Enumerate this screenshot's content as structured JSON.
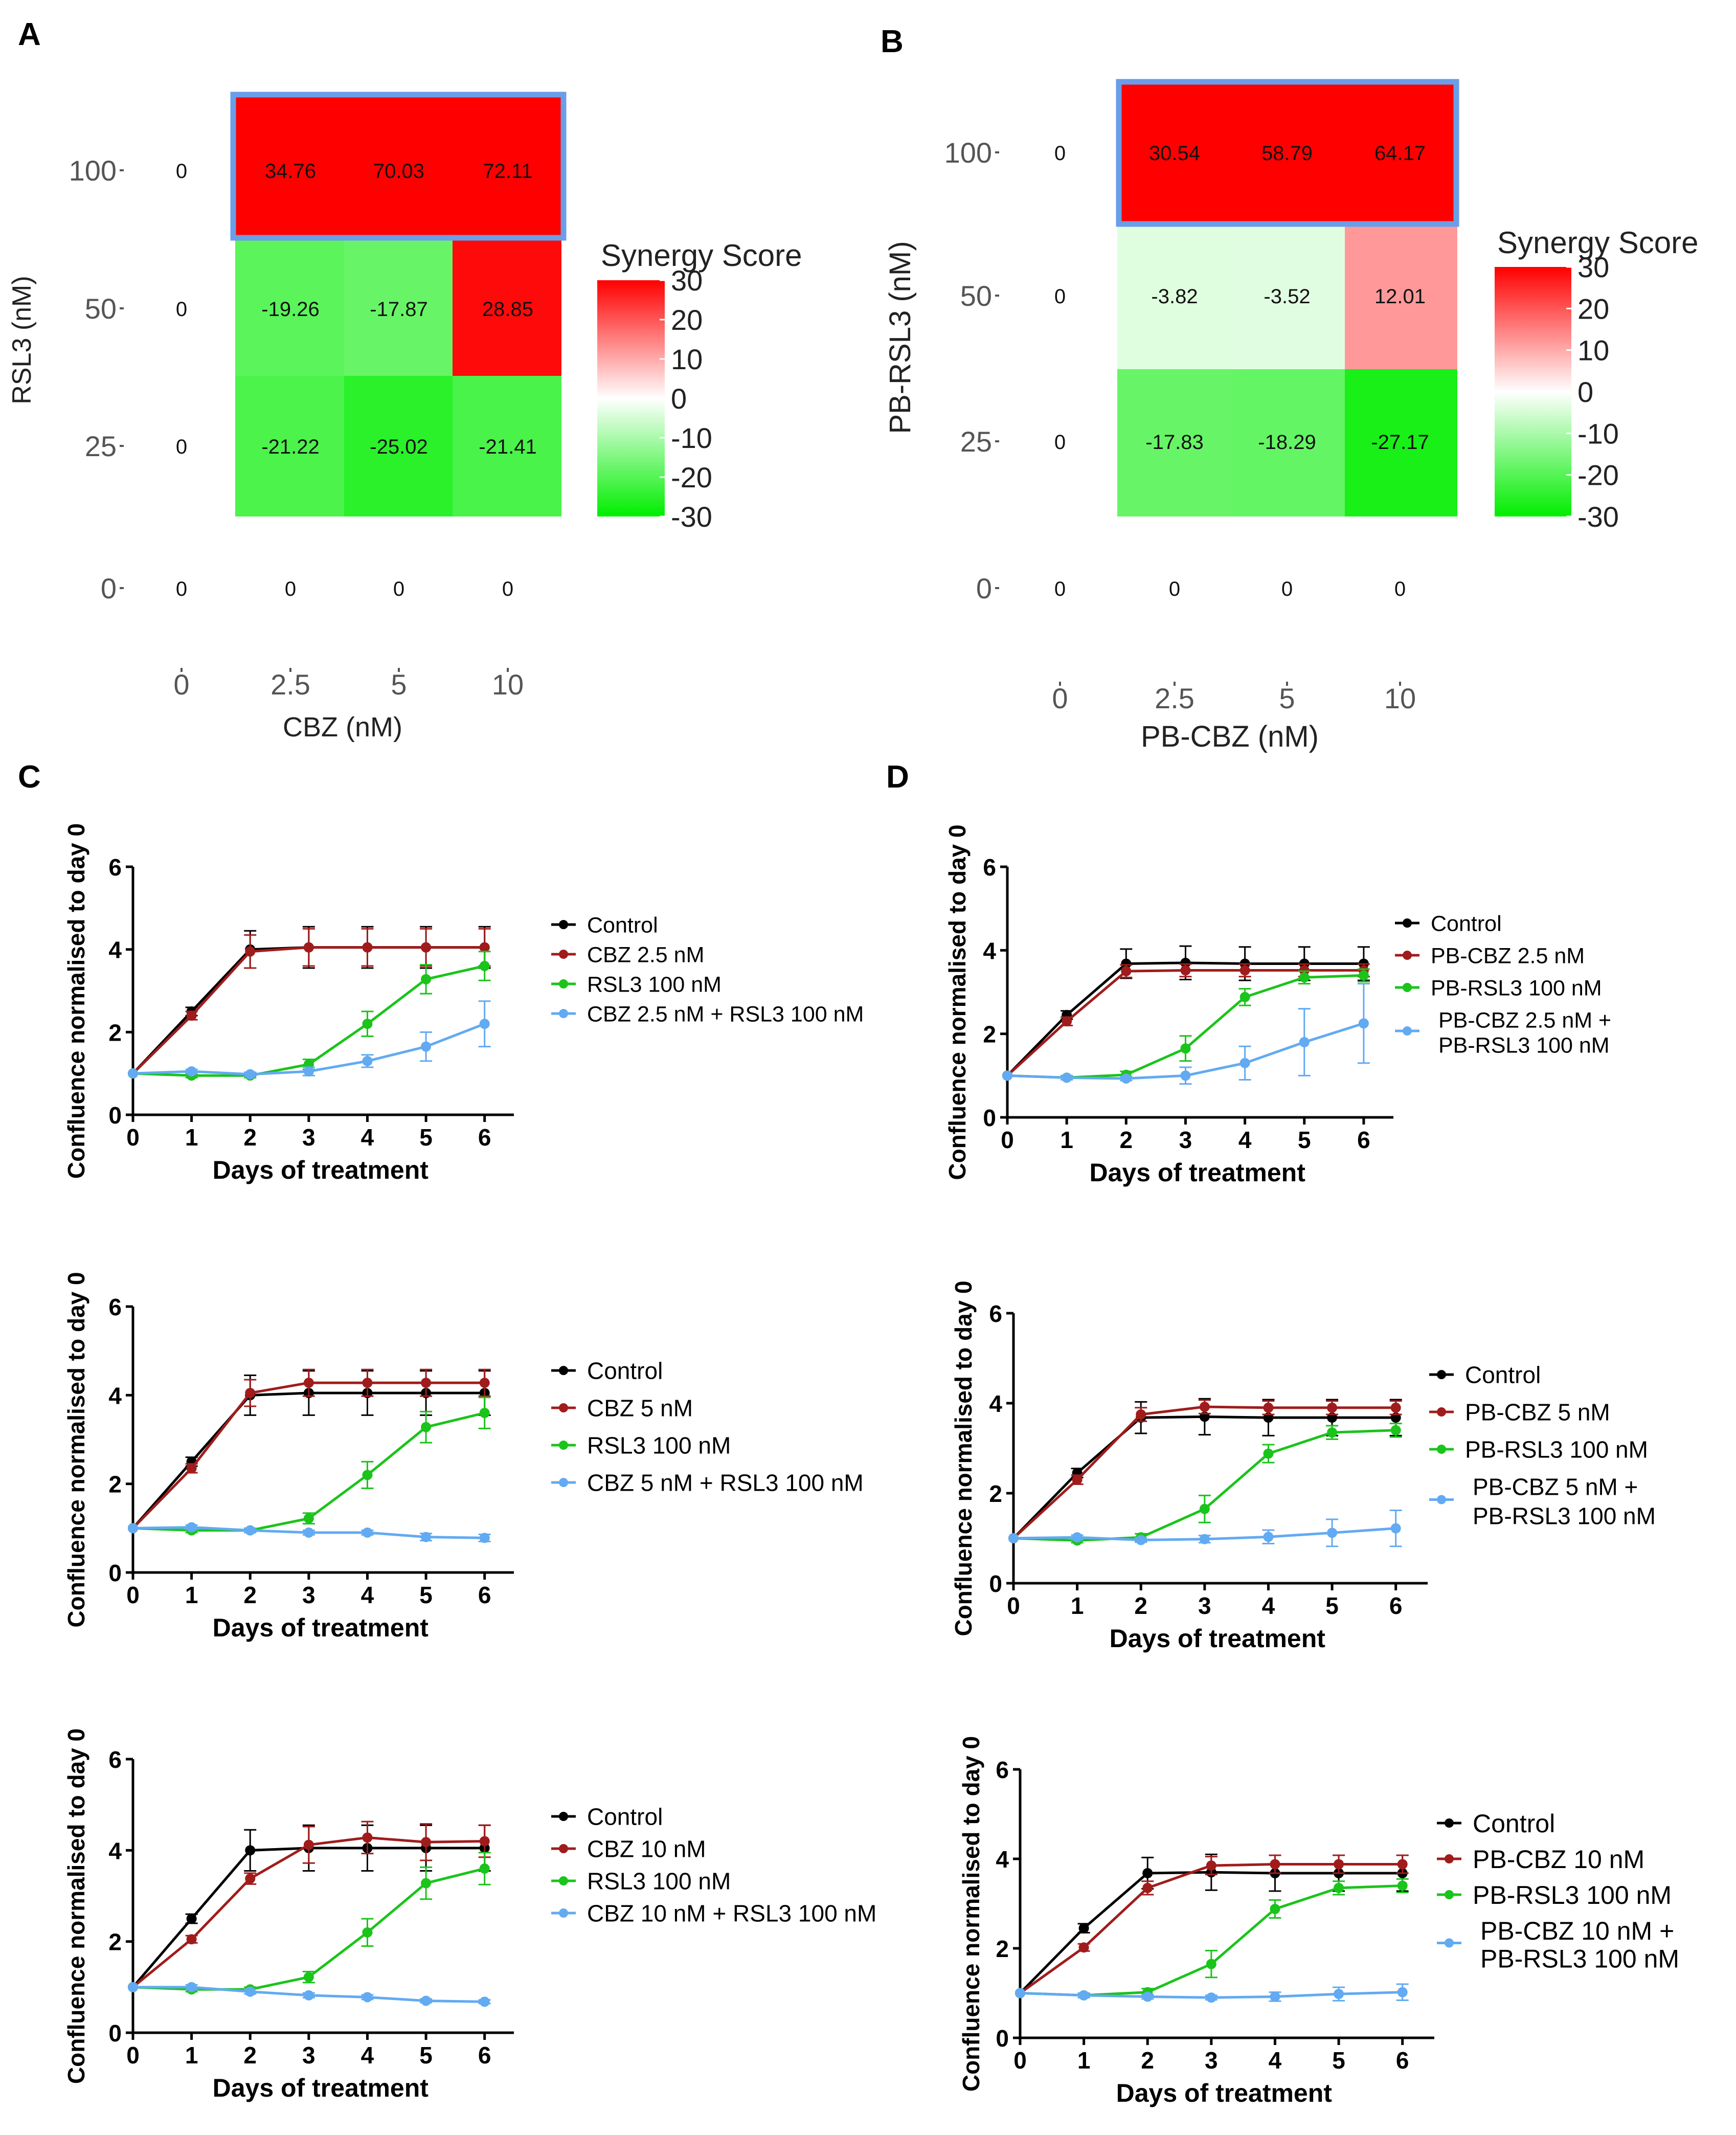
{
  "panel_labels": [
    "A",
    "B",
    "C",
    "D"
  ],
  "colors": {
    "control": "#000000",
    "drugA": "#a01c1c",
    "drugB": "#1ac41a",
    "combo": "#62aaf2",
    "highlight": "#6a9ee8",
    "heat_pos": "#ff0000",
    "heat_neg": "#00ee00",
    "heat_mid": "#ffffff"
  },
  "chart_data": [
    {
      "id": "A",
      "type": "heatmap",
      "title": "",
      "xlabel": "CBZ (nM)",
      "ylabel": "RSL3 (nM)",
      "x_ticks": [
        "0",
        "2.5",
        "5",
        "10"
      ],
      "y_ticks": [
        "0",
        "25",
        "50",
        "100"
      ],
      "rows": [
        {
          "y": "100",
          "values": [
            "0",
            "34.76",
            "70.03",
            "72.11"
          ]
        },
        {
          "y": "50",
          "values": [
            "0",
            "-19.26",
            "-17.87",
            "28.85"
          ]
        },
        {
          "y": "25",
          "values": [
            "0",
            "-21.22",
            "-25.02",
            "-21.41"
          ]
        },
        {
          "y": "0",
          "values": [
            "0",
            "0",
            "0",
            "0"
          ]
        }
      ],
      "highlighted_row": "100",
      "colorbar": {
        "title": "Synergy Score",
        "ticks": [
          "30",
          "20",
          "10",
          "0",
          "-10",
          "-20",
          "-30"
        ],
        "range": [
          -30,
          30
        ]
      }
    },
    {
      "id": "B",
      "type": "heatmap",
      "title": "",
      "xlabel": "PB-CBZ (nM)",
      "ylabel": "PB-RSL3 (nM)",
      "x_ticks": [
        "0",
        "2.5",
        "5",
        "10"
      ],
      "y_ticks": [
        "0",
        "25",
        "50",
        "100"
      ],
      "rows": [
        {
          "y": "100",
          "values": [
            "0",
            "30.54",
            "58.79",
            "64.17"
          ]
        },
        {
          "y": "50",
          "values": [
            "0",
            "-3.82",
            "-3.52",
            "12.01"
          ]
        },
        {
          "y": "25",
          "values": [
            "0",
            "-17.83",
            "-18.29",
            "-27.17"
          ]
        },
        {
          "y": "0",
          "values": [
            "0",
            "0",
            "0",
            "0"
          ]
        }
      ],
      "highlighted_row": "100",
      "colorbar": {
        "title": "Synergy Score",
        "ticks": [
          "30",
          "20",
          "10",
          "0",
          "-10",
          "-20",
          "-30"
        ],
        "range": [
          -30,
          30
        ]
      }
    },
    {
      "id": "C1",
      "type": "line",
      "xlabel": "Days of treatment",
      "ylabel": "Confluence normalised to day 0",
      "x": [
        0,
        1,
        2,
        3,
        4,
        5,
        6
      ],
      "xlim": [
        0,
        6.5
      ],
      "ylim": [
        0,
        6
      ],
      "x_ticks": [
        "0",
        "1",
        "2",
        "3",
        "4",
        "5",
        "6"
      ],
      "y_ticks": [
        "0",
        "2",
        "4",
        "6"
      ],
      "series": [
        {
          "name": "Control",
          "values": [
            1,
            2.5,
            4.0,
            4.05,
            4.05,
            4.05,
            4.05
          ],
          "err": [
            0,
            0.1,
            0.45,
            0.5,
            0.5,
            0.5,
            0.5
          ]
        },
        {
          "name": "CBZ 2.5 nM",
          "values": [
            1,
            2.4,
            3.95,
            4.05,
            4.05,
            4.05,
            4.05
          ],
          "err": [
            0,
            0.1,
            0.4,
            0.45,
            0.45,
            0.45,
            0.45
          ]
        },
        {
          "name": "RSL3 100 nM",
          "values": [
            1,
            0.95,
            0.95,
            1.22,
            2.2,
            3.28,
            3.6
          ],
          "err": [
            0,
            0.05,
            0.05,
            0.12,
            0.3,
            0.35,
            0.35
          ]
        },
        {
          "name": "CBZ 2.5 nM + RSL3 100 nM",
          "values": [
            1,
            1.05,
            0.98,
            1.05,
            1.3,
            1.65,
            2.2
          ],
          "err": [
            0,
            0.05,
            0.05,
            0.1,
            0.15,
            0.35,
            0.55
          ]
        }
      ]
    },
    {
      "id": "C2",
      "type": "line",
      "xlabel": "Days of treatment",
      "ylabel": "Confluence normalised to day 0",
      "x": [
        0,
        1,
        2,
        3,
        4,
        5,
        6
      ],
      "xlim": [
        0,
        6.5
      ],
      "ylim": [
        0,
        6
      ],
      "x_ticks": [
        "0",
        "1",
        "2",
        "3",
        "4",
        "5",
        "6"
      ],
      "y_ticks": [
        "0",
        "2",
        "4",
        "6"
      ],
      "series": [
        {
          "name": "Control",
          "values": [
            1,
            2.5,
            4.0,
            4.05,
            4.05,
            4.05,
            4.05
          ],
          "err": [
            0,
            0.1,
            0.45,
            0.5,
            0.5,
            0.5,
            0.5
          ]
        },
        {
          "name": "CBZ 5 nM",
          "values": [
            1,
            2.35,
            4.05,
            4.28,
            4.28,
            4.28,
            4.28
          ],
          "err": [
            0,
            0.1,
            0.3,
            0.3,
            0.3,
            0.3,
            0.3
          ]
        },
        {
          "name": "RSL3 100 nM",
          "values": [
            1,
            0.95,
            0.95,
            1.22,
            2.2,
            3.28,
            3.6
          ],
          "err": [
            0,
            0.05,
            0.05,
            0.12,
            0.3,
            0.35,
            0.35
          ]
        },
        {
          "name": "CBZ 5 nM + RSL3 100 nM",
          "values": [
            1,
            1.02,
            0.95,
            0.9,
            0.9,
            0.8,
            0.78
          ],
          "err": [
            0,
            0.05,
            0.05,
            0.05,
            0.05,
            0.08,
            0.08
          ]
        }
      ]
    },
    {
      "id": "C3",
      "type": "line",
      "xlabel": "Days of treatment",
      "ylabel": "Confluence normalised to day 0",
      "x": [
        0,
        1,
        2,
        3,
        4,
        5,
        6
      ],
      "xlim": [
        0,
        6.5
      ],
      "ylim": [
        0,
        6
      ],
      "x_ticks": [
        "0",
        "1",
        "2",
        "3",
        "4",
        "5",
        "6"
      ],
      "y_ticks": [
        "0",
        "2",
        "4",
        "6"
      ],
      "series": [
        {
          "name": "Control",
          "values": [
            1,
            2.5,
            4.0,
            4.05,
            4.05,
            4.05,
            4.05
          ],
          "err": [
            0,
            0.1,
            0.45,
            0.5,
            0.5,
            0.5,
            0.5
          ]
        },
        {
          "name": "CBZ 10 nM",
          "values": [
            1,
            2.05,
            3.38,
            4.12,
            4.28,
            4.18,
            4.2
          ],
          "err": [
            0,
            0.08,
            0.12,
            0.4,
            0.35,
            0.4,
            0.35
          ]
        },
        {
          "name": "RSL3 100 nM",
          "values": [
            1,
            0.95,
            0.95,
            1.22,
            2.2,
            3.28,
            3.6
          ],
          "err": [
            0,
            0.05,
            0.05,
            0.12,
            0.3,
            0.35,
            0.35
          ]
        },
        {
          "name": "CBZ 10 nM + RSL3 100 nM",
          "values": [
            1,
            1.0,
            0.9,
            0.82,
            0.78,
            0.7,
            0.68
          ],
          "err": [
            0,
            0.05,
            0.05,
            0.05,
            0.05,
            0.04,
            0.04
          ]
        }
      ]
    },
    {
      "id": "D1",
      "type": "line",
      "xlabel": "Days of treatment",
      "ylabel": "Confluence normalised to day 0",
      "x": [
        0,
        1,
        2,
        3,
        4,
        5,
        6
      ],
      "xlim": [
        0,
        6.5
      ],
      "ylim": [
        0,
        6
      ],
      "x_ticks": [
        "0",
        "1",
        "2",
        "3",
        "4",
        "5",
        "6"
      ],
      "y_ticks": [
        "0",
        "2",
        "4",
        "6"
      ],
      "series": [
        {
          "name": "Control",
          "values": [
            1,
            2.45,
            3.68,
            3.7,
            3.68,
            3.68,
            3.68
          ],
          "err": [
            0,
            0.1,
            0.35,
            0.4,
            0.4,
            0.4,
            0.4
          ]
        },
        {
          "name": "PB-CBZ 2.5 nM",
          "values": [
            1,
            2.3,
            3.5,
            3.52,
            3.52,
            3.52,
            3.52
          ],
          "err": [
            0,
            0.1,
            0.15,
            0.15,
            0.15,
            0.15,
            0.15
          ]
        },
        {
          "name": "PB-RSL3 100 nM",
          "values": [
            1,
            0.95,
            1.02,
            1.65,
            2.88,
            3.35,
            3.4
          ],
          "err": [
            0,
            0.05,
            0.08,
            0.3,
            0.2,
            0.15,
            0.15
          ]
        },
        {
          "name": "PB-CBZ 2.5 nM + PB-RSL3 100 nM",
          "values": [
            1,
            0.95,
            0.93,
            1.0,
            1.3,
            1.8,
            2.25
          ],
          "err": [
            0,
            0.05,
            0.05,
            0.2,
            0.4,
            0.8,
            0.95
          ]
        }
      ],
      "legend_lines": [
        [
          "Control"
        ],
        [
          "PB-CBZ 2.5 nM"
        ],
        [
          "PB-RSL3 100 nM"
        ],
        [
          "PB-CBZ 2.5 nM +",
          "PB-RSL3 100 nM"
        ]
      ]
    },
    {
      "id": "D2",
      "type": "line",
      "xlabel": "Days of treatment",
      "ylabel": "Confluence normalised to day 0",
      "x": [
        0,
        1,
        2,
        3,
        4,
        5,
        6
      ],
      "xlim": [
        0,
        6.5
      ],
      "ylim": [
        0,
        6
      ],
      "x_ticks": [
        "0",
        "1",
        "2",
        "3",
        "4",
        "5",
        "6"
      ],
      "y_ticks": [
        "0",
        "2",
        "4",
        "6"
      ],
      "series": [
        {
          "name": "Control",
          "values": [
            1,
            2.45,
            3.68,
            3.7,
            3.68,
            3.68,
            3.68
          ],
          "err": [
            0,
            0.1,
            0.35,
            0.4,
            0.4,
            0.4,
            0.4
          ]
        },
        {
          "name": "PB-CBZ 5 nM",
          "values": [
            1,
            2.3,
            3.75,
            3.92,
            3.9,
            3.9,
            3.9
          ],
          "err": [
            0,
            0.1,
            0.15,
            0.15,
            0.15,
            0.15,
            0.15
          ]
        },
        {
          "name": "PB-RSL3 100 nM",
          "values": [
            1,
            0.95,
            1.02,
            1.65,
            2.88,
            3.35,
            3.4
          ],
          "err": [
            0,
            0.05,
            0.08,
            0.3,
            0.2,
            0.15,
            0.15
          ]
        },
        {
          "name": "PB-CBZ 5 nM + PB-RSL3 100 nM",
          "values": [
            1,
            1.02,
            0.96,
            0.98,
            1.03,
            1.12,
            1.22
          ],
          "err": [
            0,
            0.05,
            0.05,
            0.08,
            0.15,
            0.3,
            0.4
          ]
        }
      ],
      "legend_lines": [
        [
          "Control"
        ],
        [
          "PB-CBZ 5 nM"
        ],
        [
          "PB-RSL3 100 nM"
        ],
        [
          "PB-CBZ 5 nM +",
          "PB-RSL3 100 nM"
        ]
      ]
    },
    {
      "id": "D3",
      "type": "line",
      "xlabel": "Days of treatment",
      "ylabel": "Confluence normalised to day 0",
      "x": [
        0,
        1,
        2,
        3,
        4,
        5,
        6
      ],
      "xlim": [
        0,
        6.5
      ],
      "ylim": [
        0,
        6
      ],
      "x_ticks": [
        "0",
        "1",
        "2",
        "3",
        "4",
        "5",
        "6"
      ],
      "y_ticks": [
        "0",
        "2",
        "4",
        "6"
      ],
      "series": [
        {
          "name": "Control",
          "values": [
            1,
            2.45,
            3.68,
            3.7,
            3.68,
            3.68,
            3.68
          ],
          "err": [
            0,
            0.1,
            0.35,
            0.4,
            0.4,
            0.4,
            0.4
          ]
        },
        {
          "name": "PB-CBZ 10 nM",
          "values": [
            1,
            2.02,
            3.35,
            3.85,
            3.88,
            3.88,
            3.88
          ],
          "err": [
            0,
            0.08,
            0.15,
            0.2,
            0.2,
            0.2,
            0.2
          ]
        },
        {
          "name": "PB-RSL3 100 nM",
          "values": [
            1,
            0.95,
            1.02,
            1.65,
            2.88,
            3.35,
            3.4
          ],
          "err": [
            0,
            0.05,
            0.08,
            0.3,
            0.2,
            0.15,
            0.15
          ]
        },
        {
          "name": "PB-CBZ 10 nM + PB-RSL3 100 nM",
          "values": [
            1,
            0.95,
            0.92,
            0.9,
            0.92,
            0.98,
            1.02
          ],
          "err": [
            0,
            0.05,
            0.05,
            0.05,
            0.1,
            0.15,
            0.18
          ]
        }
      ],
      "legend_lines": [
        [
          "Control"
        ],
        [
          "PB-CBZ 10 nM"
        ],
        [
          "PB-RSL3 100 nM"
        ],
        [
          "PB-CBZ 10 nM +",
          "PB-RSL3 100 nM"
        ]
      ]
    }
  ]
}
